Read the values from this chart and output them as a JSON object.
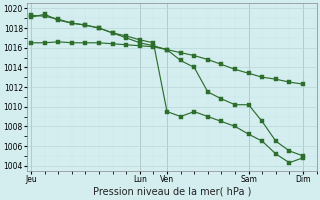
{
  "background_color": "#d4eef0",
  "grid_color_major": "#b8d8dc",
  "grid_color_minor": "#cce4e8",
  "line_color": "#2d6e2d",
  "ylim": [
    1003.5,
    1020.5
  ],
  "yticks": [
    1004,
    1006,
    1008,
    1010,
    1012,
    1014,
    1016,
    1018,
    1020
  ],
  "xlabel": "Pression niveau de la mer( hPa )",
  "xlabel_fontsize": 7,
  "xtick_labels": [
    "Jeu",
    "",
    "Lun",
    "Ven",
    "",
    "Sam",
    "",
    "Dim"
  ],
  "xtick_positions": [
    0,
    4,
    8,
    10,
    13,
    16,
    18,
    20
  ],
  "xlim": [
    -0.3,
    21.0
  ],
  "line1_x": [
    0,
    1,
    2,
    3,
    4,
    5,
    6,
    7,
    8,
    9,
    10,
    11,
    12,
    13,
    14,
    15,
    16,
    17,
    18,
    19,
    20
  ],
  "line1_y": [
    1016.5,
    1016.5,
    1016.6,
    1016.5,
    1016.5,
    1016.5,
    1016.4,
    1016.3,
    1016.2,
    1016.1,
    1015.8,
    1015.5,
    1015.2,
    1014.8,
    1014.3,
    1013.8,
    1013.4,
    1013.0,
    1012.8,
    1012.5,
    1012.3
  ],
  "line2_x": [
    0,
    1,
    2,
    3,
    4,
    5,
    6,
    7,
    8,
    9,
    10,
    11,
    12,
    13,
    14,
    15,
    16,
    17,
    18,
    19,
    20
  ],
  "line2_y": [
    1019.3,
    1019.2,
    1018.9,
    1018.5,
    1018.3,
    1018.0,
    1017.5,
    1017.0,
    1016.5,
    1016.2,
    1015.8,
    1014.7,
    1014.0,
    1011.5,
    1010.8,
    1010.2,
    1010.2,
    1008.5,
    1006.5,
    1005.5,
    1005.0
  ],
  "line3_x": [
    0,
    1,
    2,
    3,
    4,
    5,
    6,
    7,
    8,
    9,
    10,
    11,
    12,
    13,
    14,
    15,
    16,
    17,
    18,
    19,
    20
  ],
  "line3_y": [
    1019.1,
    1019.4,
    1018.8,
    1018.5,
    1018.3,
    1018.0,
    1017.5,
    1017.2,
    1016.8,
    1016.5,
    1009.5,
    1009.0,
    1009.5,
    1009.0,
    1008.5,
    1008.0,
    1007.2,
    1006.5,
    1005.2,
    1004.3,
    1004.8
  ],
  "vline_positions": [
    0,
    8,
    10,
    16,
    20
  ],
  "vline_color": "#555555"
}
